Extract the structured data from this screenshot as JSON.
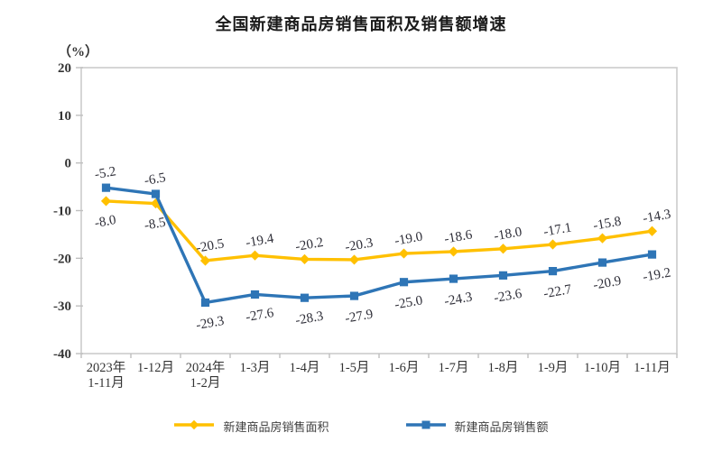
{
  "title": "全国新建商品房销售面积及销售额增速",
  "axis_unit": "（%）",
  "chart_data": {
    "type": "line",
    "title": "全国新建商品房销售面积及销售额增速",
    "ylabel": "（%）",
    "xlabel": "",
    "ylim": [
      -40,
      20
    ],
    "y_ticks": [
      20,
      10,
      0,
      -10,
      -20,
      -30,
      -40
    ],
    "grid": false,
    "legend_position": "bottom",
    "categories": [
      [
        "2023年",
        "1-11月"
      ],
      [
        "1-12月"
      ],
      [
        "2024年",
        "1-2月"
      ],
      [
        "1-3月"
      ],
      [
        "1-4月"
      ],
      [
        "1-5月"
      ],
      [
        "1-6月"
      ],
      [
        "1-7月"
      ],
      [
        "1-8月"
      ],
      [
        "1-9月"
      ],
      [
        "1-10月"
      ],
      [
        "1-11月"
      ]
    ],
    "series": [
      {
        "name": "新建商品房销售面积",
        "color": "#FFC000",
        "marker": "diamond",
        "values": [
          -8.0,
          -8.5,
          -20.5,
          -19.4,
          -20.2,
          -20.3,
          -19.0,
          -18.6,
          -18.0,
          -17.1,
          -15.8,
          -14.3
        ],
        "label_side": [
          "below",
          "below",
          "above",
          "above",
          "above",
          "above",
          "above",
          "above",
          "above",
          "above",
          "above",
          "above"
        ]
      },
      {
        "name": "新建商品房销售额",
        "color": "#2E75B6",
        "marker": "square",
        "values": [
          -5.2,
          -6.5,
          -29.3,
          -27.6,
          -28.3,
          -27.9,
          -25.0,
          -24.3,
          -23.6,
          -22.7,
          -20.9,
          -19.2
        ],
        "label_side": [
          "above",
          "above",
          "below",
          "below",
          "below",
          "below",
          "below",
          "below",
          "below",
          "below",
          "below",
          "below"
        ]
      }
    ],
    "colors": {
      "axis_border": "#cccccc",
      "tick_mark": "#bfbfbf",
      "text": "#333333"
    }
  }
}
